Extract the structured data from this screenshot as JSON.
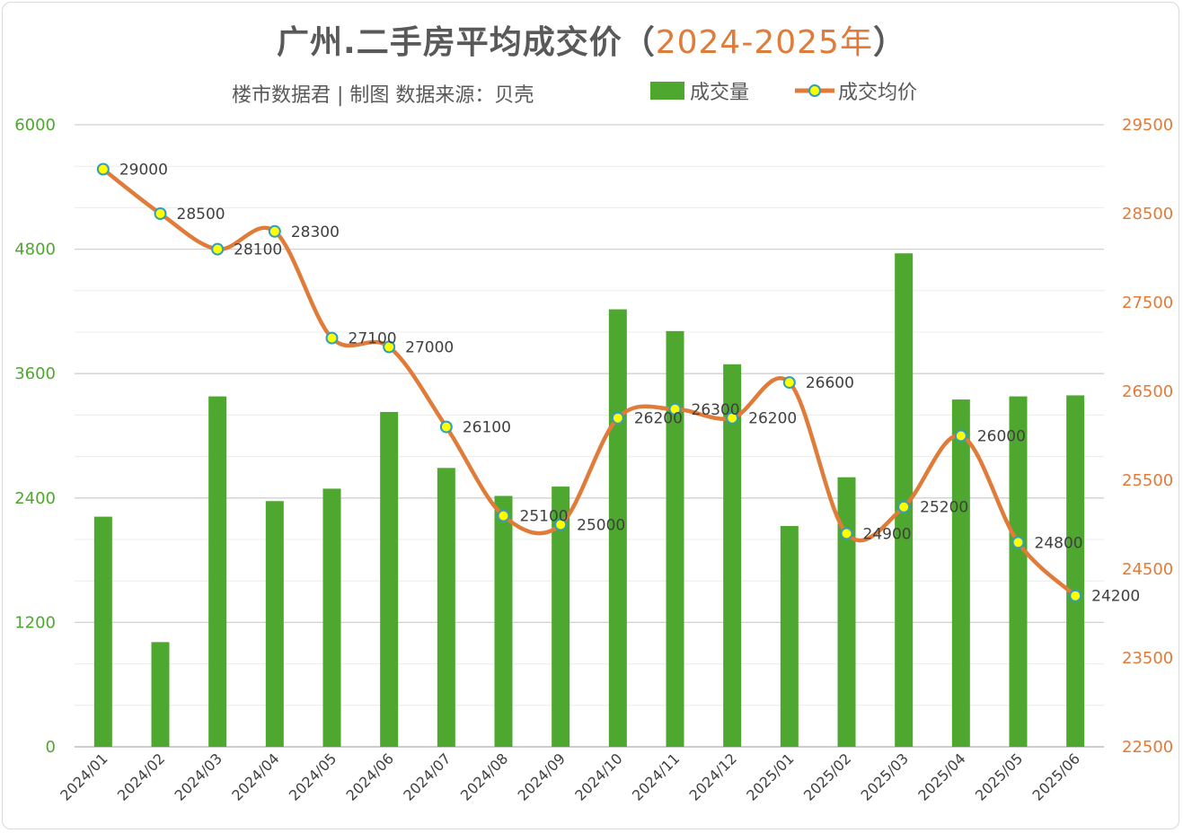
{
  "title": {
    "main": "广州.二手房平均成交价（",
    "accent": "2024-2025年",
    "end": "）"
  },
  "subtitle": "楼市数据君 | 制图  数据来源：贝壳",
  "legend": {
    "bar_label": "成交量",
    "line_label": "成交均价"
  },
  "colors": {
    "bar": "#4ea72e",
    "line": "#e07b39",
    "marker_fill": "#ffff00",
    "marker_stroke": "#2e9fbf",
    "left_axis": "#4ea72e",
    "right_axis": "#e07b39",
    "grid": "#d9d9d9"
  },
  "chart_data": {
    "type": "bar",
    "categories": [
      "2024/01",
      "2024/02",
      "2024/03",
      "2024/04",
      "2024/05",
      "2024/06",
      "2024/07",
      "2024/08",
      "2024/09",
      "2024/10",
      "2024/11",
      "2024/12",
      "2025/01",
      "2025/02",
      "2025/03",
      "2025/04",
      "2025/05",
      "2025/06"
    ],
    "series": [
      {
        "name": "成交量",
        "type": "bar",
        "axis": "left",
        "values": [
          2220,
          1010,
          3380,
          2370,
          2490,
          3230,
          2690,
          2420,
          2510,
          4220,
          4010,
          3690,
          2130,
          2600,
          4760,
          3350,
          3380,
          3390
        ]
      },
      {
        "name": "成交均价",
        "type": "line",
        "axis": "right",
        "smooth": true,
        "values": [
          29000,
          28500,
          28100,
          28300,
          27100,
          27000,
          26100,
          25100,
          25000,
          26200,
          26300,
          26200,
          26600,
          24900,
          25200,
          26000,
          24800,
          24200
        ],
        "labels": [
          "29000",
          "28500",
          "28100",
          "28300",
          "27100",
          "27000",
          "26100",
          "25100",
          "25000",
          "26200",
          "26300",
          "26200",
          "26600",
          "24900",
          "25200",
          "26000",
          "24800",
          "24200"
        ]
      }
    ],
    "y_left": {
      "ylim": [
        0,
        6000
      ],
      "ticks": [
        "0",
        "1200",
        "2400",
        "3600",
        "4800",
        "6000"
      ]
    },
    "y_right": {
      "ylim": [
        22500,
        29500
      ],
      "ticks": [
        "22500",
        "23500",
        "24500",
        "25500",
        "26500",
        "27500",
        "28500",
        "29500"
      ]
    },
    "grid": true,
    "legend_position": "top-right"
  }
}
